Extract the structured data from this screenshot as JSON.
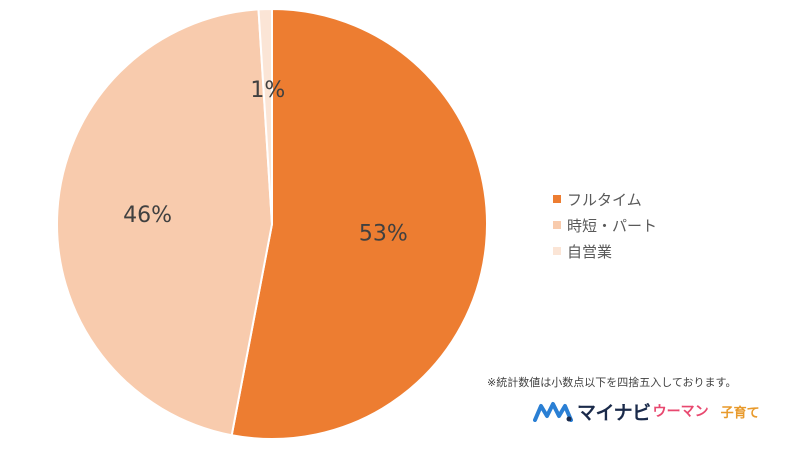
{
  "chart_data": {
    "type": "pie",
    "title": "",
    "categories": [
      "フルタイム",
      "時短・パート",
      "自営業"
    ],
    "values": [
      53,
      46,
      1
    ],
    "labels": [
      "53%",
      "46%",
      "1%"
    ],
    "colors": [
      "#ED7D31",
      "#F8CBAD",
      "#FBE5D6"
    ],
    "start_angle_deg": 0,
    "direction": "clockwise",
    "legend_position": "right"
  },
  "legend": {
    "items": [
      {
        "label": "フルタイム",
        "color": "#ED7D31"
      },
      {
        "label": "時短・パート",
        "color": "#F8CBAD"
      },
      {
        "label": "自営業",
        "color": "#FBE5D6"
      }
    ]
  },
  "note": "※統計数値は小数点以下を四捨五入しております。",
  "logo": {
    "icon": "mynavi-m-icon",
    "brand": "マイナビ",
    "sub": "ウーマン",
    "category": "子育て"
  }
}
